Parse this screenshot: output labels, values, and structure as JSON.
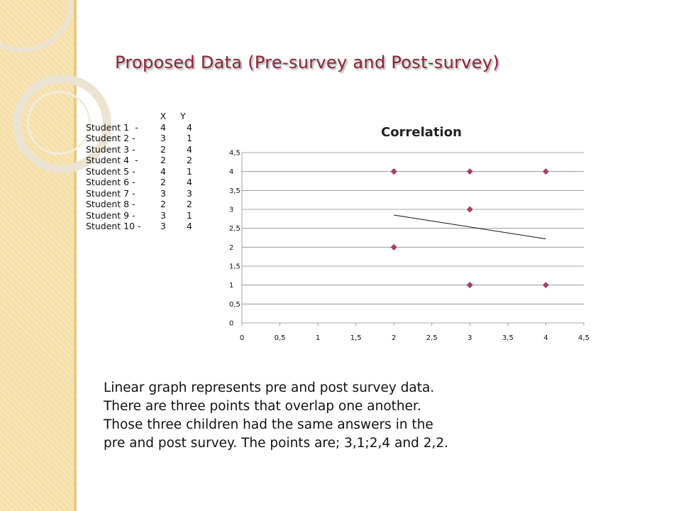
{
  "slide": {
    "title": "Proposed Data (Pre-survey and Post-survey)",
    "caption_lines": [
      "Linear graph represents pre and post survey data.",
      "There are three points that overlap one another.",
      "Those three children had the same answers in the",
      "pre and post survey.  The points are; 3,1;2,4 and 2,2."
    ]
  },
  "table": {
    "header": {
      "x": "X",
      "y": "Y"
    },
    "rows": [
      {
        "name": "Student 1  -",
        "x": "4",
        "y": "4"
      },
      {
        "name": "Student 2 -",
        "x": "3",
        "y": "1"
      },
      {
        "name": "Student 3 -",
        "x": "2",
        "y": "4"
      },
      {
        "name": "Student 4  -",
        "x": "2",
        "y": "2"
      },
      {
        "name": "Student 5 -",
        "x": "4",
        "y": "1"
      },
      {
        "name": "Student 6 -",
        "x": "2",
        "y": "4"
      },
      {
        "name": "Student 7 -",
        "x": "3",
        "y": "3"
      },
      {
        "name": "Student 8 -",
        "x": "2",
        "y": "2"
      },
      {
        "name": "Student 9 -",
        "x": "3",
        "y": "1"
      },
      {
        "name": "Student 10 -",
        "x": "3",
        "y": "4"
      }
    ]
  },
  "chart_data": {
    "type": "scatter",
    "title": "Correlation",
    "xlabel": "",
    "ylabel": "",
    "xlim": [
      0,
      4.5
    ],
    "ylim": [
      0,
      4.5
    ],
    "xticks": [
      0,
      0.5,
      1,
      1.5,
      2,
      2.5,
      3,
      3.5,
      4,
      4.5
    ],
    "yticks": [
      0,
      0.5,
      1,
      1.5,
      2,
      2.5,
      3,
      3.5,
      4,
      4.5
    ],
    "xtick_labels": [
      "0",
      "0,5",
      "1",
      "1,5",
      "2",
      "2,5",
      "3",
      "3,5",
      "4",
      "4,5"
    ],
    "ytick_labels": [
      "0",
      "0,5",
      "1",
      "1,5",
      "2",
      "2,5",
      "3",
      "3,5",
      "4",
      "4,5"
    ],
    "grid": "horizontal",
    "legend": "none",
    "points": [
      {
        "x": 4,
        "y": 4
      },
      {
        "x": 3,
        "y": 1
      },
      {
        "x": 2,
        "y": 4
      },
      {
        "x": 2,
        "y": 2
      },
      {
        "x": 4,
        "y": 1
      },
      {
        "x": 2,
        "y": 4
      },
      {
        "x": 3,
        "y": 3
      },
      {
        "x": 2,
        "y": 2
      },
      {
        "x": 3,
        "y": 1
      },
      {
        "x": 3,
        "y": 4
      }
    ],
    "trendline": {
      "x": [
        2,
        4
      ],
      "y": [
        2.85,
        2.22
      ]
    },
    "marker_color": "#a0436a",
    "line_color": "#111111",
    "grid_color": "#8c8c8c"
  }
}
